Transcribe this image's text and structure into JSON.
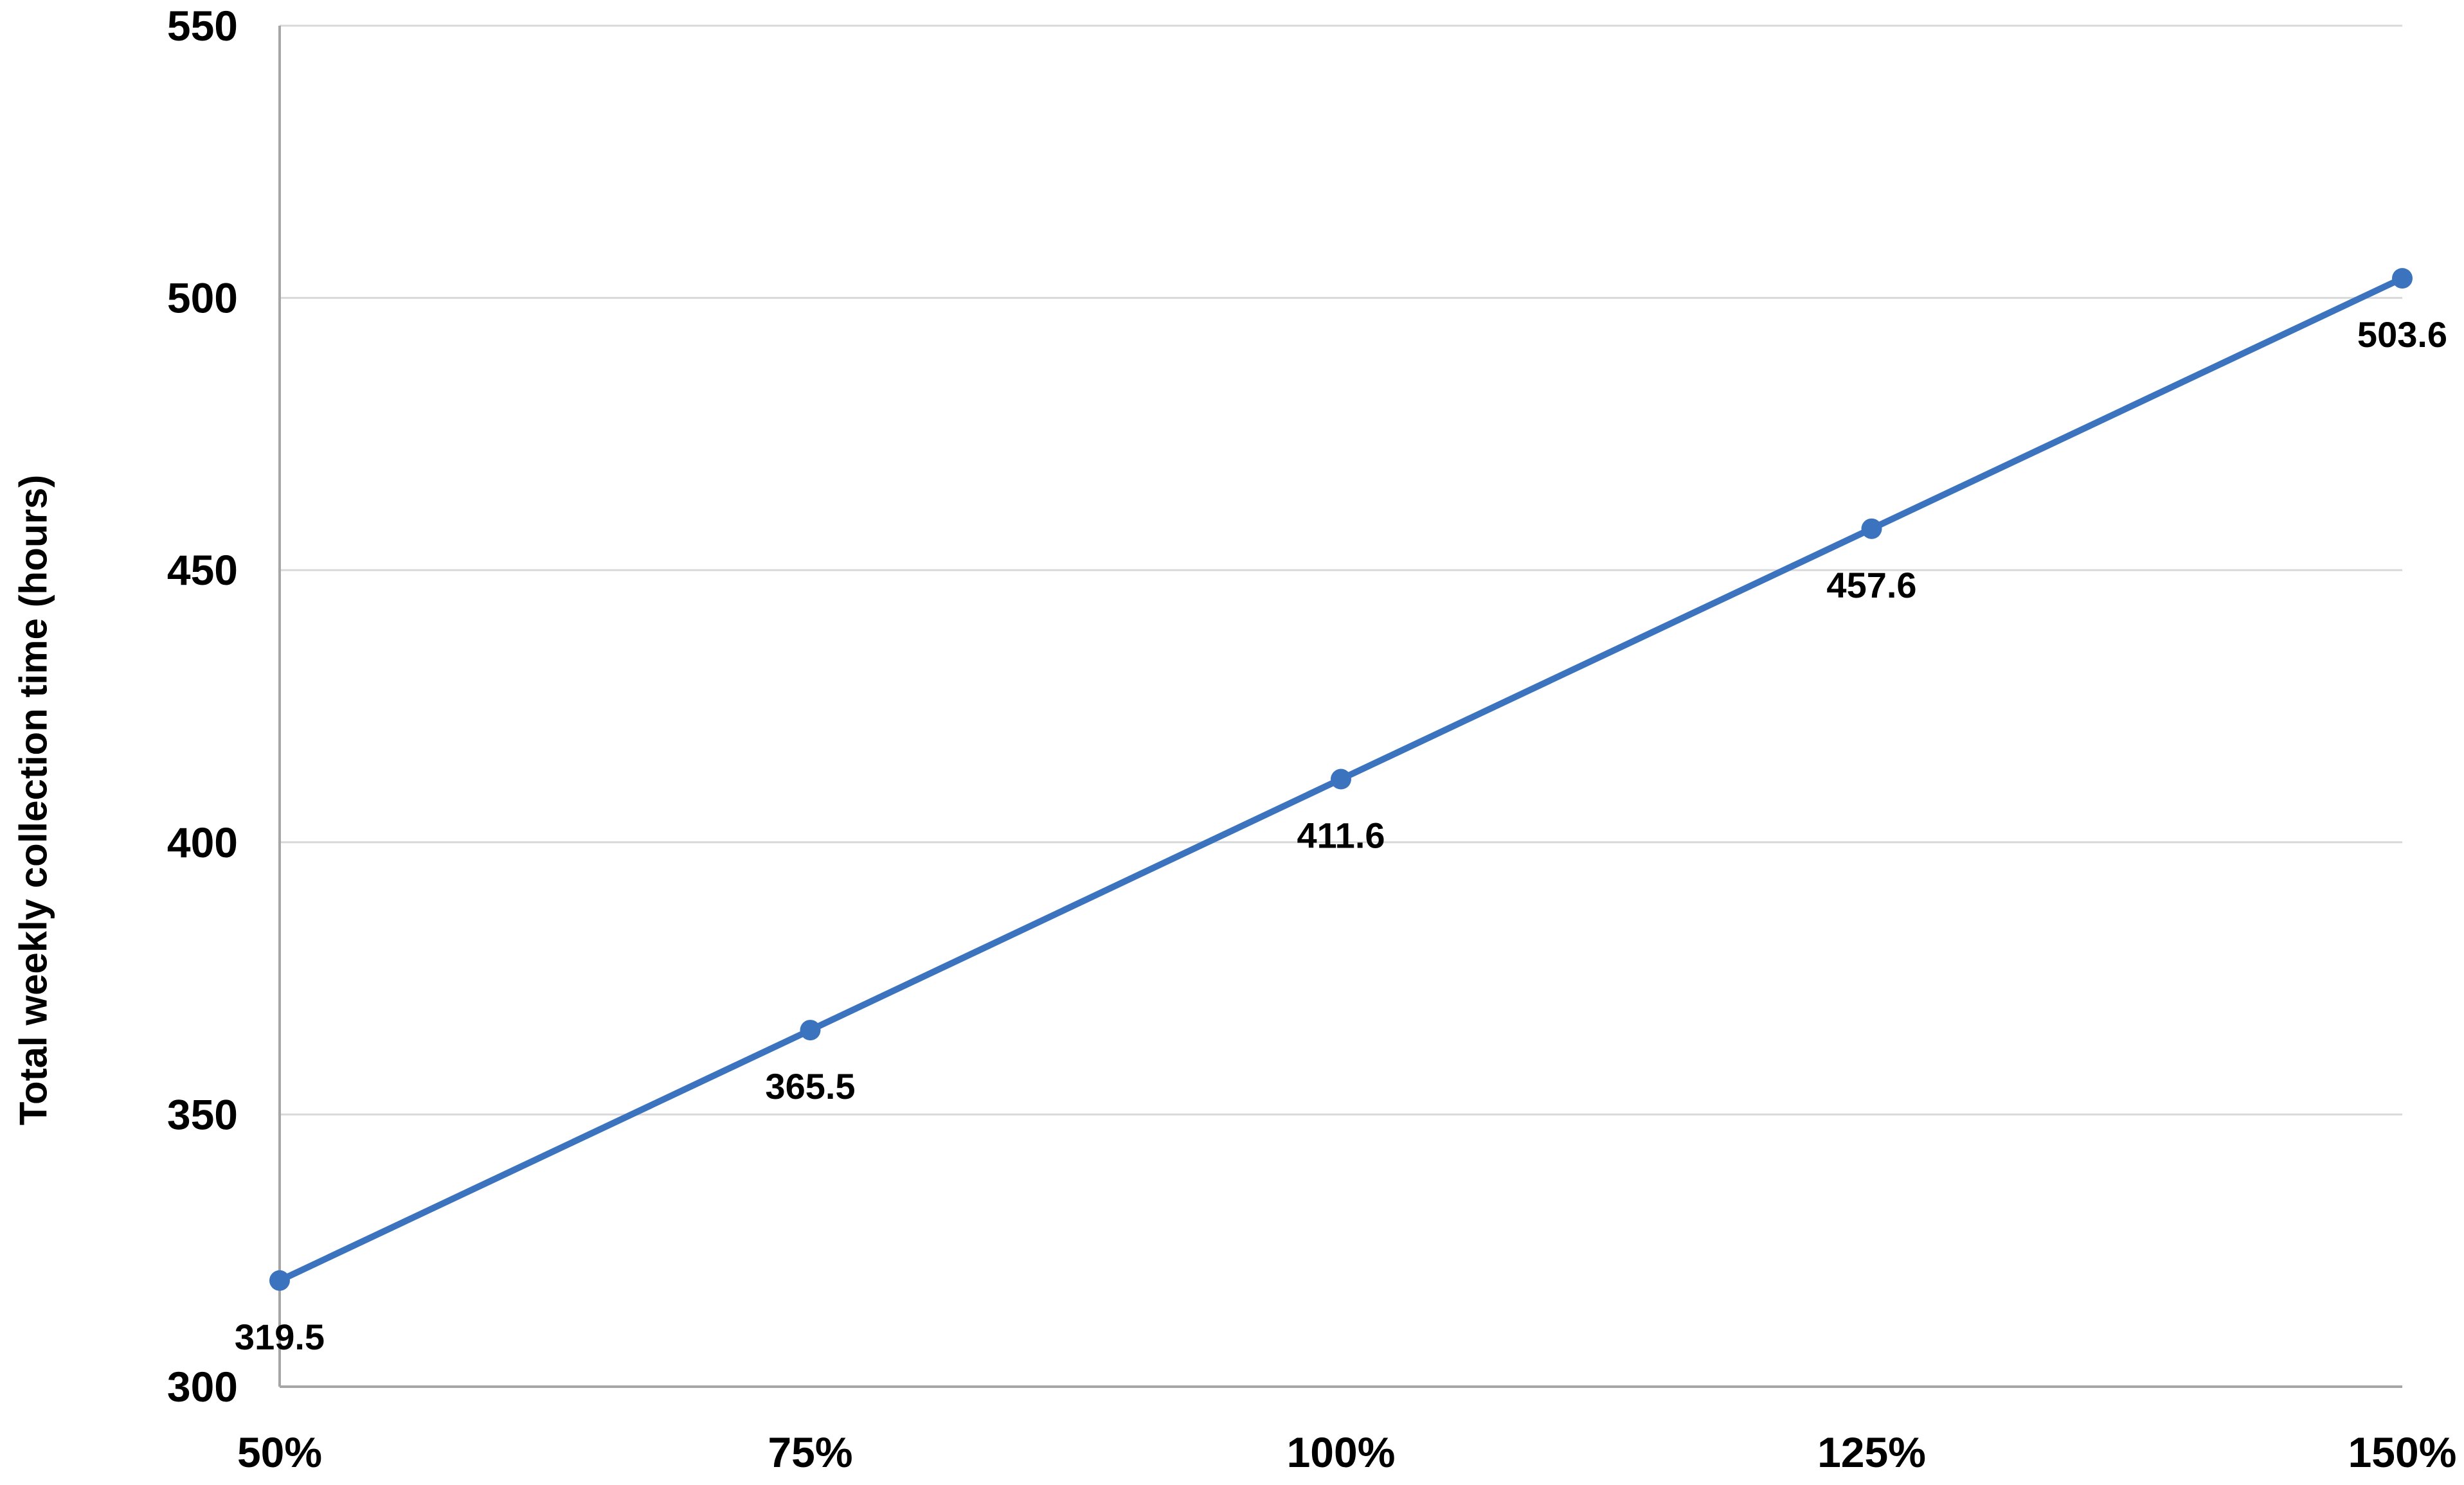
{
  "chart_data": {
    "type": "line",
    "title": "",
    "xlabel": "",
    "ylabel": "Total weekly collection time (hours)",
    "categories": [
      "50%",
      "75%",
      "100%",
      "125%",
      "150%"
    ],
    "series": [
      {
        "name": "Total weekly collection time (hours)",
        "values": [
          319.5,
          365.5,
          411.6,
          457.6,
          503.6
        ],
        "data_labels": [
          "319.5",
          "365.5",
          "411.6",
          "457.6",
          "503.6"
        ],
        "data_label_position": "below"
      }
    ],
    "ylim": [
      300,
      550
    ],
    "ytick_interval": 50,
    "yticks": [
      "300",
      "350",
      "400",
      "450",
      "500",
      "550"
    ],
    "grid": "horizontal",
    "legend": "none",
    "marker": "circle",
    "colors": {
      "line": "#3B73BE",
      "marker": "#3B73BE",
      "gridline": "#D9D9D9",
      "axis_line": "#A6A6A6",
      "label_text": "#000000",
      "background": "#FFFFFF"
    }
  }
}
